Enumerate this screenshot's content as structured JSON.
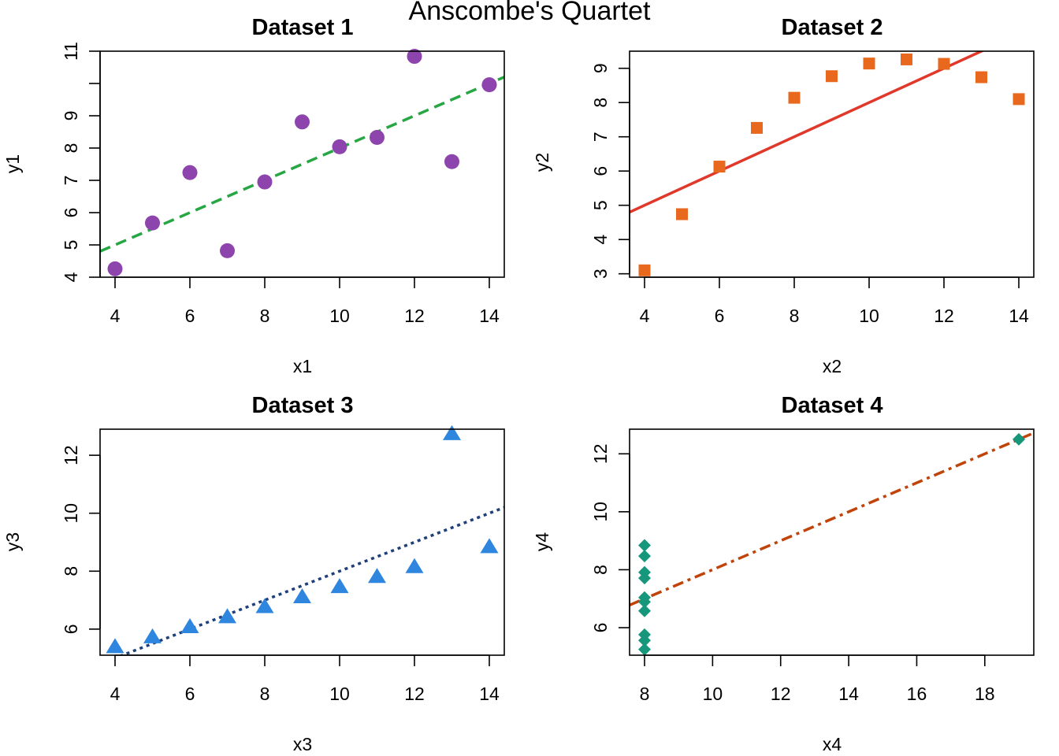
{
  "figure": {
    "title": "Anscombe's Quartet"
  },
  "chart_data": [
    {
      "type": "scatter",
      "title": "Dataset 1",
      "xlabel": "x1",
      "ylabel": "y1",
      "xlim": [
        3.6,
        14.4
      ],
      "ylim": [
        4.0,
        11.0
      ],
      "xticks": [
        4,
        6,
        8,
        10,
        12,
        14
      ],
      "yticks": [
        4,
        5,
        6,
        7,
        8,
        9,
        10,
        11
      ],
      "ytick_labels": [
        "4",
        "5",
        "6",
        "7",
        "8",
        "9",
        "",
        "11"
      ],
      "x": [
        10,
        8,
        13,
        9,
        11,
        14,
        6,
        4,
        12,
        7,
        5
      ],
      "y": [
        8.04,
        6.95,
        7.58,
        8.81,
        8.33,
        9.96,
        7.24,
        4.26,
        10.84,
        4.82,
        5.68
      ],
      "marker": "circle",
      "color": "#8e44ad",
      "fit": {
        "intercept": 3.0,
        "slope": 0.5,
        "color": "#27a644",
        "style": "dashed"
      },
      "grid": false
    },
    {
      "type": "scatter",
      "title": "Dataset 2",
      "xlabel": "x2",
      "ylabel": "y2",
      "xlim": [
        3.6,
        14.4
      ],
      "ylim": [
        2.9,
        9.5
      ],
      "xticks": [
        4,
        6,
        8,
        10,
        12,
        14
      ],
      "yticks": [
        3,
        4,
        5,
        6,
        7,
        8,
        9
      ],
      "ytick_labels": [
        "3",
        "4",
        "5",
        "6",
        "7",
        "8",
        "9"
      ],
      "x": [
        10,
        8,
        13,
        9,
        11,
        14,
        6,
        4,
        12,
        7,
        5
      ],
      "y": [
        9.14,
        8.14,
        8.74,
        8.77,
        9.26,
        8.1,
        6.13,
        3.1,
        9.13,
        7.26,
        4.74
      ],
      "marker": "square",
      "color": "#e8681e",
      "fit": {
        "intercept": 3.0,
        "slope": 0.5,
        "color": "#e0392b",
        "style": "solid"
      },
      "grid": false
    },
    {
      "type": "scatter",
      "title": "Dataset 3",
      "xlabel": "x3",
      "ylabel": "y3",
      "xlim": [
        3.6,
        14.4
      ],
      "ylim": [
        5.1,
        12.9
      ],
      "xticks": [
        4,
        6,
        8,
        10,
        12,
        14
      ],
      "yticks": [
        6,
        8,
        10,
        12
      ],
      "ytick_labels": [
        "6",
        "8",
        "10",
        "12"
      ],
      "x": [
        10,
        8,
        13,
        9,
        11,
        14,
        6,
        4,
        12,
        7,
        5
      ],
      "y": [
        7.46,
        6.77,
        12.74,
        7.11,
        7.81,
        8.84,
        6.08,
        5.39,
        8.15,
        6.42,
        5.73
      ],
      "marker": "triangle",
      "color": "#2e86de",
      "fit": {
        "intercept": 3.0,
        "slope": 0.5,
        "color": "#1f3f7a",
        "style": "dotted"
      },
      "grid": false
    },
    {
      "type": "scatter",
      "title": "Dataset 4",
      "xlabel": "x4",
      "ylabel": "y4",
      "xlim": [
        7.56,
        19.44
      ],
      "ylim": [
        5.05,
        12.85
      ],
      "xticks": [
        8,
        10,
        12,
        14,
        16,
        18
      ],
      "yticks": [
        6,
        8,
        10,
        12
      ],
      "ytick_labels": [
        "6",
        "8",
        "10",
        "12"
      ],
      "x": [
        8,
        8,
        8,
        8,
        8,
        8,
        8,
        19,
        8,
        8,
        8
      ],
      "y": [
        6.58,
        5.76,
        7.71,
        8.84,
        8.47,
        7.04,
        5.25,
        12.5,
        5.56,
        7.91,
        6.89
      ],
      "marker": "diamond",
      "color": "#16967a",
      "fit": {
        "intercept": 3.0,
        "slope": 0.5,
        "color": "#c0440a",
        "style": "dashdot"
      },
      "grid": false
    }
  ]
}
